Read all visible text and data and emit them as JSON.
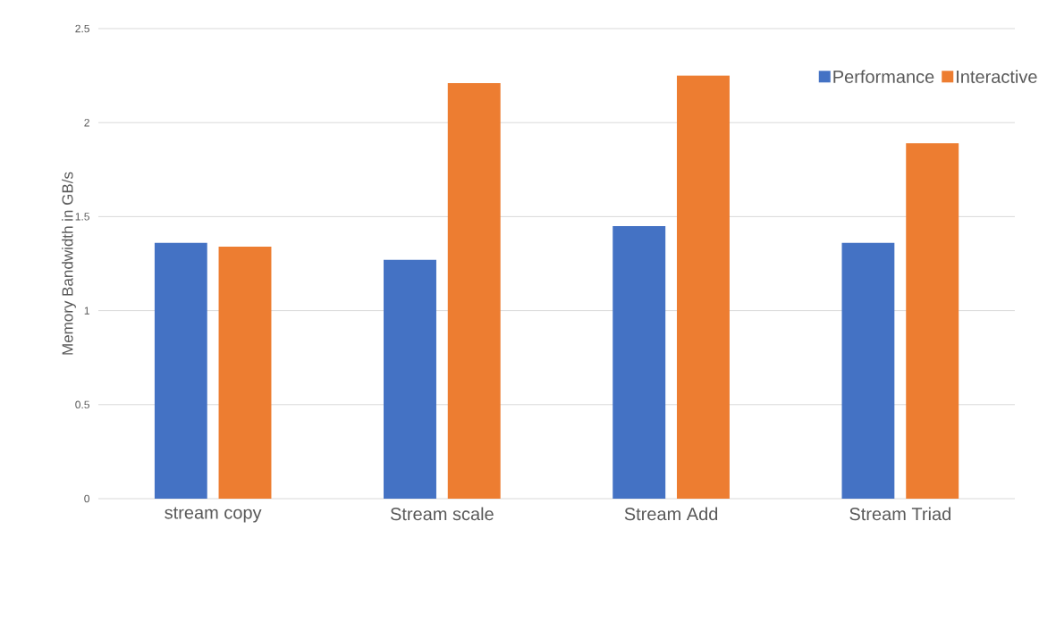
{
  "chart_data": {
    "type": "bar",
    "ylabel": "Memory Bandwidth in GB/s",
    "categories": [
      "stream copy",
      "Stream scale",
      "Stream Add",
      "Stream Triad"
    ],
    "series": [
      {
        "name": "Performance",
        "color": "#4472c4",
        "values": [
          1.36,
          1.27,
          1.45,
          1.36
        ]
      },
      {
        "name": "Interactive",
        "color": "#ed7d31",
        "values": [
          1.34,
          2.21,
          2.25,
          1.89
        ]
      }
    ],
    "ylim": [
      0,
      2.5
    ],
    "yticks": [
      0,
      0.5,
      1,
      1.5,
      2,
      2.5
    ],
    "grid": "y",
    "legend": "top right"
  }
}
